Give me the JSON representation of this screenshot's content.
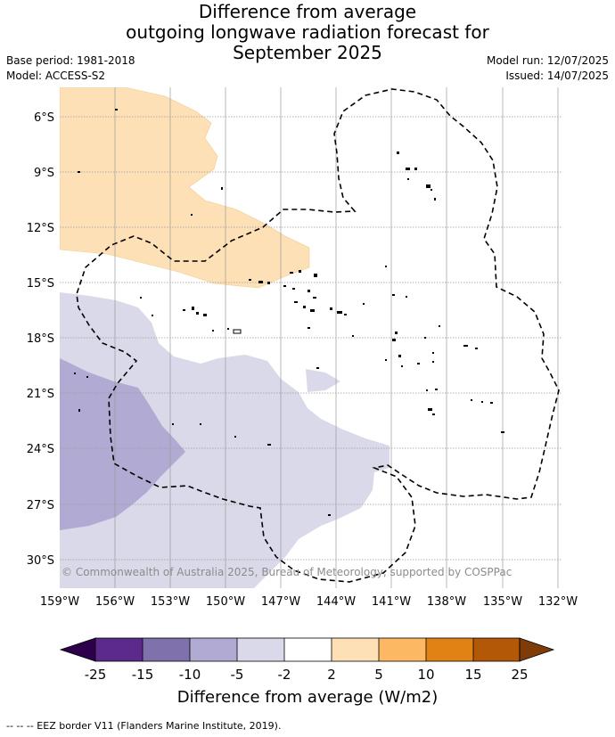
{
  "title": {
    "line1": "Difference from average",
    "line2": "outgoing longwave radiation forecast for",
    "line3": "September 2025"
  },
  "meta": {
    "base_period": "Base period: 1981-2018",
    "model": "Model: ACCESS-S2",
    "model_run": "Model run: 12/07/2025",
    "issued": "Issued: 14/07/2025"
  },
  "map": {
    "lat_labels": [
      "6°S",
      "9°S",
      "12°S",
      "15°S",
      "18°S",
      "21°S",
      "24°S",
      "27°S",
      "30°S"
    ],
    "lon_labels": [
      "159°W",
      "156°W",
      "153°W",
      "150°W",
      "147°W",
      "144°W",
      "141°W",
      "138°W",
      "135°W",
      "132°W"
    ],
    "copyright": "© Commonwealth of Australia 2025, Bureau of Meteorology, supported by COSPPac",
    "colors": {
      "pos_2_5": "#fde0b6",
      "neg_2_5": "#d9d9e9",
      "neg_5_10": "#b1aad2",
      "land": "#000000",
      "grid": "#999999"
    }
  },
  "colorbar": {
    "ticks": [
      "-25",
      "-15",
      "-10",
      "-5",
      "-2",
      "2",
      "5",
      "10",
      "15",
      "25"
    ],
    "colors": [
      "#5b2a8a",
      "#7f72ac",
      "#b1aad2",
      "#d9d9e9",
      "#ffffff",
      "#fde0b6",
      "#fdb863",
      "#e08214",
      "#b35806"
    ],
    "under_color": "#2d004b",
    "over_color": "#7f3b08",
    "label": "Difference from average (W/m2)"
  },
  "footnote": "--  --  -- EEZ border V11 (Flanders Marine Institute, 2019)."
}
